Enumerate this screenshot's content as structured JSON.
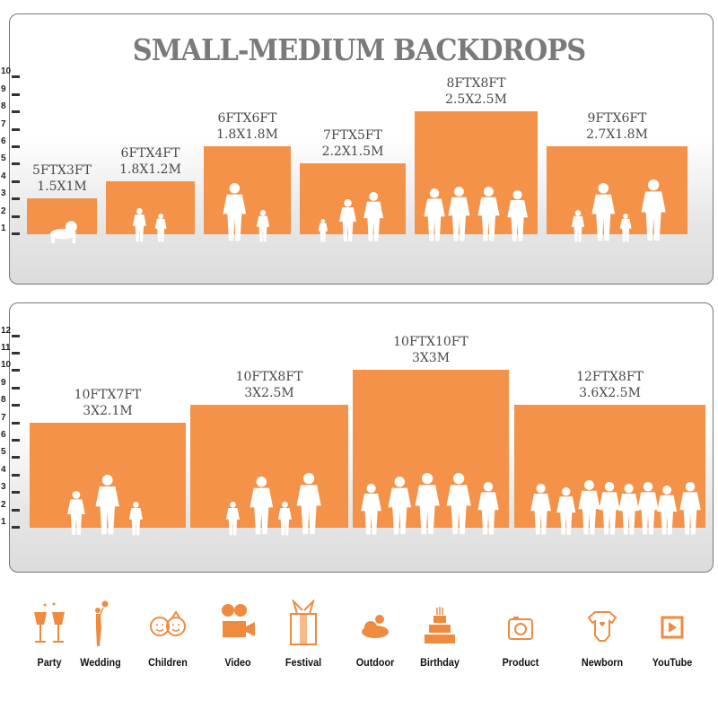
{
  "title": "SMALL-MEDIUM BACKDROPS",
  "accent_color": "#f39248",
  "top_panel": {
    "ruler": [
      "1",
      "2",
      "3",
      "4",
      "5",
      "6",
      "7",
      "8",
      "9",
      "10"
    ],
    "backdrops": [
      {
        "ft": "5FTX3FT",
        "m": "1.5X1M",
        "height_ft": 3,
        "figures": "crawling-baby"
      },
      {
        "ft": "6FTX4FT",
        "m": "1.8X1.2M",
        "height_ft": 4,
        "figures": "two-children"
      },
      {
        "ft": "6FTX6FT",
        "m": "1.8X1.8M",
        "height_ft": 6,
        "figures": "woman-holding-child-and-girl"
      },
      {
        "ft": "7FTX5FT",
        "m": "2.2X1.5M",
        "height_ft": 5,
        "figures": "family-of-three"
      },
      {
        "ft": "8FTX8FT",
        "m": "2.5X2.5M",
        "height_ft": 8,
        "figures": "four-adults"
      },
      {
        "ft": "9FTX6FT",
        "m": "2.7X1.8M",
        "height_ft": 6,
        "figures": "family-of-four"
      }
    ]
  },
  "bottom_panel": {
    "ruler": [
      "1",
      "2",
      "3",
      "4",
      "5",
      "6",
      "7",
      "8",
      "9",
      "10",
      "11",
      "12"
    ],
    "backdrops": [
      {
        "ft": "10FTX7FT",
        "m": "3X2.1M",
        "height_ft": 7,
        "figures": "family-of-three"
      },
      {
        "ft": "10FTX8FT",
        "m": "3X2.5M",
        "height_ft": 8,
        "figures": "family-of-four"
      },
      {
        "ft": "10FTX10FT",
        "m": "3X3M",
        "height_ft": 10,
        "figures": "five-adults"
      },
      {
        "ft": "12FTX8FT",
        "m": "3.6X2.5M",
        "height_ft": 8,
        "figures": "group-of-eight"
      }
    ]
  },
  "uses": [
    {
      "label": "Party",
      "icon": "champagne-glasses-icon"
    },
    {
      "label": "Wedding",
      "icon": "wedding-couple-icon"
    },
    {
      "label": "Children",
      "icon": "children-faces-icon"
    },
    {
      "label": "Video",
      "icon": "film-camera-icon"
    },
    {
      "label": "Festival",
      "icon": "gift-box-icon"
    },
    {
      "label": "Outdoor",
      "icon": "cloud-icon"
    },
    {
      "label": "Birthday",
      "icon": "birthday-cake-icon"
    },
    {
      "label": "Product",
      "icon": "camera-icon"
    },
    {
      "label": "Newborn",
      "icon": "baby-onesie-icon"
    },
    {
      "label": "YouTube",
      "icon": "play-button-icon"
    }
  ]
}
